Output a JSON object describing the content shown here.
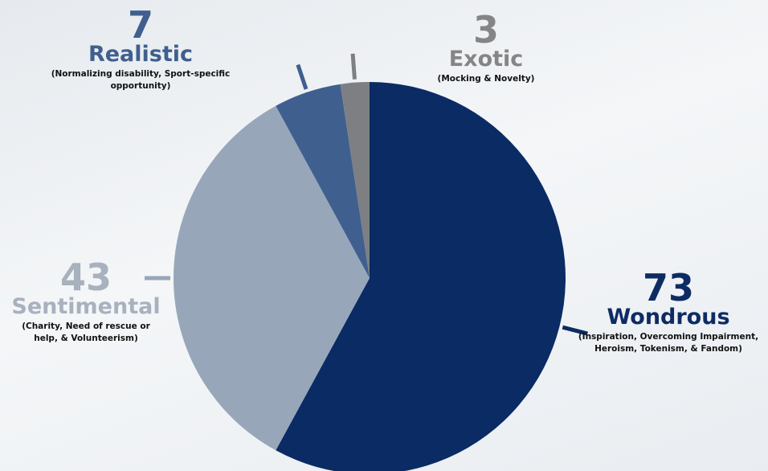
{
  "chart_data": {
    "type": "pie",
    "slices": [
      {
        "label": "Wondrous",
        "value": 73,
        "description": "(Inspiration, Overcoming Impairment, Heroism, Tokenism, & Fandom)",
        "color": "#0a2b63"
      },
      {
        "label": "Sentimental",
        "value": 43,
        "description": "(Charity, Need of rescue or help, & Volunteerism)",
        "color": "#98a6ba"
      },
      {
        "label": "Realistic",
        "value": 7,
        "description": "(Normalizing disability, Sport-specific opportunity)",
        "color": "#3f5f8e"
      },
      {
        "label": "Exotic",
        "value": 3,
        "description": "(Mocking & Novelty)",
        "color": "#7d7f83"
      }
    ]
  },
  "labels": {
    "realistic": {
      "value": "7",
      "name": "Realistic",
      "desc_line1": "(Normalizing disability, Sport-specific",
      "desc_line2": "opportunity)"
    },
    "exotic": {
      "value": "3",
      "name": "Exotic",
      "desc_line1": "(Mocking & Novelty)"
    },
    "sentimental": {
      "value": "43",
      "name": "Sentimental",
      "desc_line1": "(Charity, Need of rescue or",
      "desc_line2": "help, & Volunteerism)"
    },
    "wondrous": {
      "value": "73",
      "name": "Wondrous",
      "desc_line1": "(Inspiration, Overcoming Impairment,",
      "desc_line2": "Heroism, Tokenism, & Fandom)"
    }
  }
}
